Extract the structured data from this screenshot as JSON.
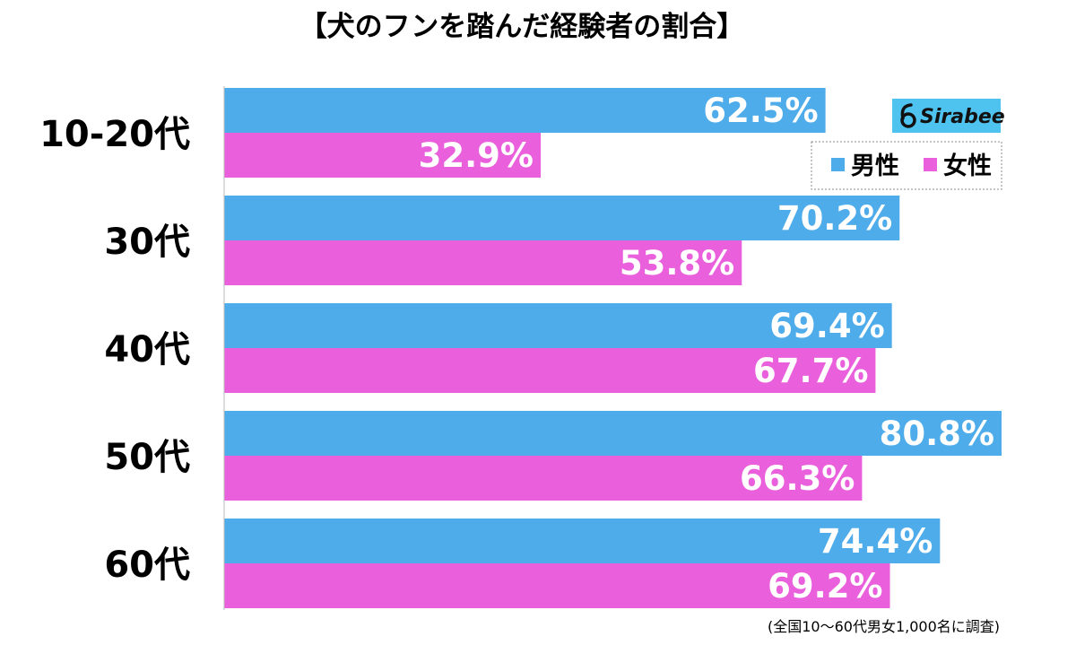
{
  "chart_data": {
    "type": "bar",
    "orientation": "horizontal",
    "title": "【犬のフンを踏んだ経験者の割合】",
    "categories": [
      "10-20代",
      "30代",
      "40代",
      "50代",
      "60代"
    ],
    "series": [
      {
        "name": "男性",
        "color": "#4facea",
        "values": [
          62.5,
          70.2,
          69.4,
          80.8,
          74.4
        ]
      },
      {
        "name": "女性",
        "color": "#ea5fdb",
        "values": [
          32.9,
          53.8,
          67.7,
          66.3,
          69.2
        ]
      }
    ],
    "value_suffix": "%",
    "xlim": [
      0,
      81
    ],
    "legend_position": "top-right",
    "note": "(全国10〜60代男女1,000名に調査)",
    "logo": "Sirabee"
  },
  "colors": {
    "logo_bg": "#4fc3f0"
  }
}
